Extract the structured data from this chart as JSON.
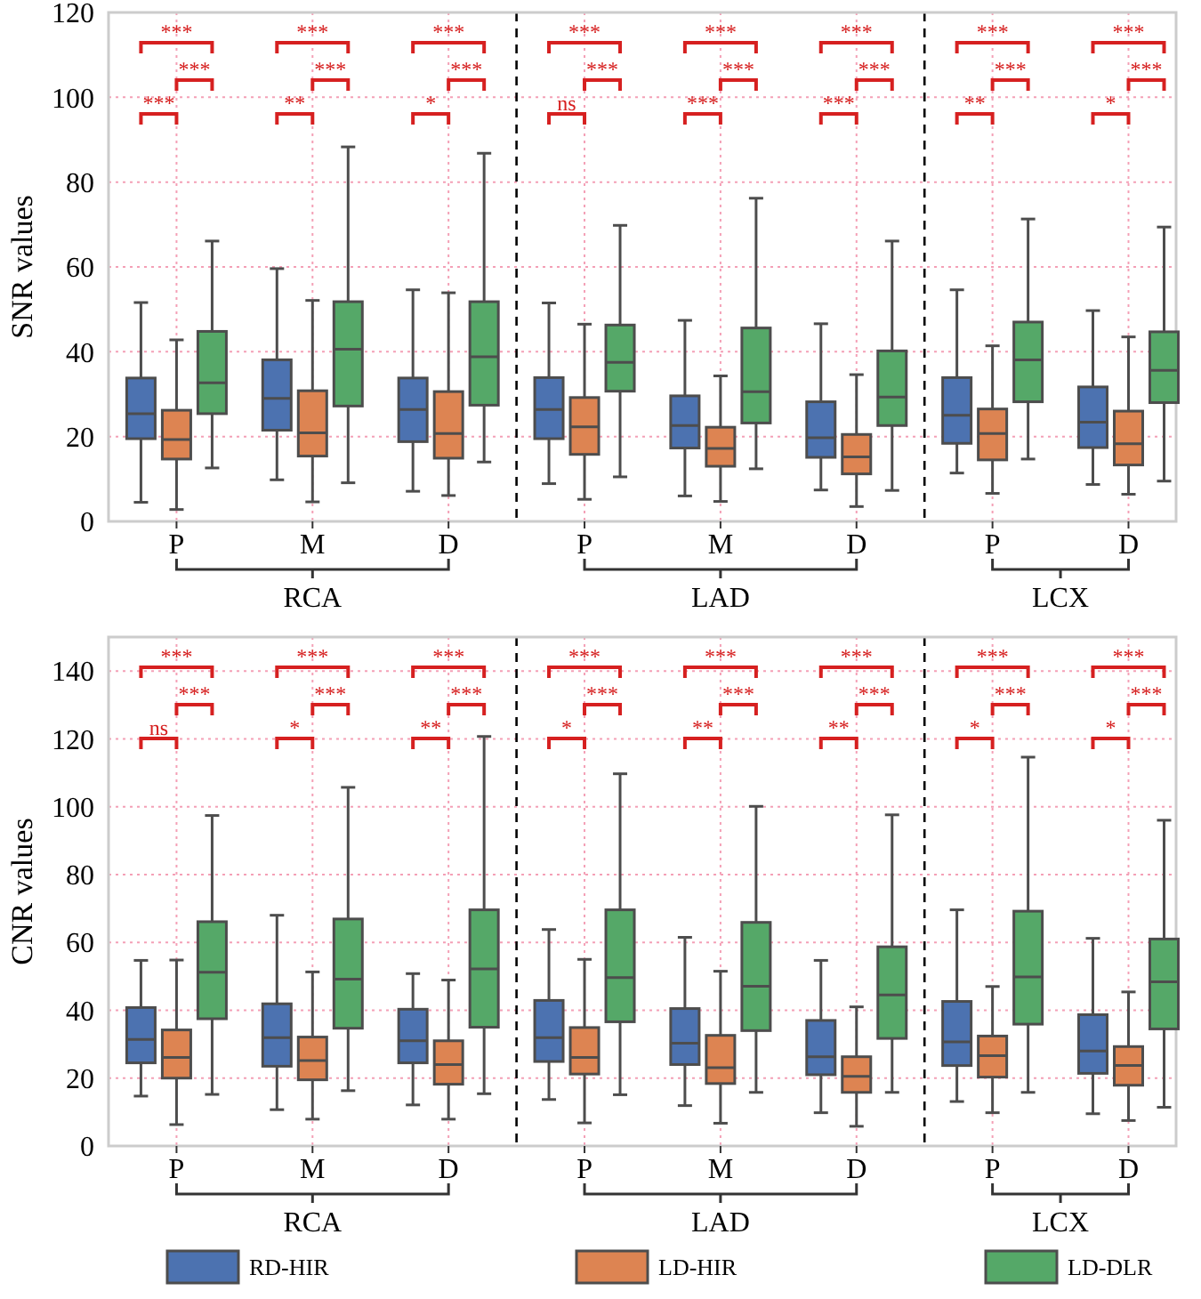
{
  "chart_data": [
    {
      "type": "box",
      "ylabel": "SNR values",
      "categories": [
        "P",
        "M",
        "D",
        "P",
        "M",
        "D",
        "P",
        "D"
      ],
      "ylim": [
        0,
        120
      ],
      "yticks": [
        0,
        20,
        40,
        60,
        80,
        100,
        120
      ],
      "grid": true,
      "series": [
        {
          "color": "#4c72b0",
          "boxes": [
            {
              "low": 4.5,
              "q1": 19.5,
              "median": 25.4,
              "q3": 33.8,
              "high": 51.6
            },
            {
              "low": 9.8,
              "q1": 21.5,
              "median": 29,
              "q3": 38.1,
              "high": 59.6
            },
            {
              "low": 7.1,
              "q1": 18.8,
              "median": 26.4,
              "q3": 33.8,
              "high": 54.6
            },
            {
              "low": 8.9,
              "q1": 19.5,
              "median": 26.4,
              "q3": 33.9,
              "high": 51.5
            },
            {
              "low": 6,
              "q1": 17.3,
              "median": 22.6,
              "q3": 29.6,
              "high": 47.4
            },
            {
              "low": 7.4,
              "q1": 15.1,
              "median": 19.7,
              "q3": 28.2,
              "high": 46.6
            },
            {
              "low": 11.4,
              "q1": 18.4,
              "median": 25,
              "q3": 33.9,
              "high": 54.6
            },
            {
              "low": 8.7,
              "q1": 17.4,
              "median": 23.4,
              "q3": 31.7,
              "high": 49.7
            }
          ]
        },
        {
          "color": "#dd8452",
          "boxes": [
            {
              "low": 2.8,
              "q1": 14.7,
              "median": 19.3,
              "q3": 26.2,
              "high": 42.8
            },
            {
              "low": 4.6,
              "q1": 15.4,
              "median": 20.9,
              "q3": 30.8,
              "high": 52.1
            },
            {
              "low": 6.1,
              "q1": 14.9,
              "median": 20.7,
              "q3": 30.6,
              "high": 53.9
            },
            {
              "low": 5.2,
              "q1": 15.8,
              "median": 22.3,
              "q3": 29.2,
              "high": 46.5
            },
            {
              "low": 4.7,
              "q1": 13,
              "median": 17.2,
              "q3": 22.2,
              "high": 34.3
            },
            {
              "low": 3.5,
              "q1": 11.2,
              "median": 15.2,
              "q3": 20.5,
              "high": 34.6
            },
            {
              "low": 6.6,
              "q1": 14.5,
              "median": 20.7,
              "q3": 26.5,
              "high": 41.4
            },
            {
              "low": 6.4,
              "q1": 13.3,
              "median": 18.3,
              "q3": 26,
              "high": 43.5
            }
          ]
        },
        {
          "color": "#55a868",
          "boxes": [
            {
              "low": 12.6,
              "q1": 25.4,
              "median": 32.7,
              "q3": 44.8,
              "high": 66.1
            },
            {
              "low": 9.1,
              "q1": 27.2,
              "median": 40.6,
              "q3": 51.8,
              "high": 88.3
            },
            {
              "low": 14,
              "q1": 27.4,
              "median": 38.8,
              "q3": 51.8,
              "high": 86.8
            },
            {
              "low": 10.5,
              "q1": 30.7,
              "median": 37.5,
              "q3": 46.3,
              "high": 69.8
            },
            {
              "low": 12.4,
              "q1": 23.2,
              "median": 30.6,
              "q3": 45.6,
              "high": 76.2
            },
            {
              "low": 7.3,
              "q1": 22.6,
              "median": 29.3,
              "q3": 40.2,
              "high": 66.1
            },
            {
              "low": 14.7,
              "q1": 28.2,
              "median": 38.1,
              "q3": 47,
              "high": 71.3
            },
            {
              "low": 9.5,
              "q1": 28,
              "median": 35.6,
              "q3": 44.7,
              "high": 69.4
            }
          ]
        }
      ],
      "annotations": [
        "***",
        "***",
        "***",
        "**",
        "***",
        "***",
        "*",
        "***",
        "***",
        "ns",
        "***",
        "***",
        "***",
        "***",
        "***",
        "***",
        "***",
        "***",
        "**",
        "***",
        "***",
        "*",
        "***",
        "***",
        "RCA",
        "LAD",
        "LCX"
      ]
    },
    {
      "type": "box",
      "ylabel": "CNR values",
      "categories": [
        "P",
        "M",
        "D",
        "P",
        "M",
        "D",
        "P",
        "D"
      ],
      "ylim": [
        0,
        150
      ],
      "yticks": [
        0,
        20,
        40,
        60,
        80,
        100,
        120,
        140
      ],
      "grid": true,
      "legend": "bottom",
      "series": [
        {
          "name": "RD-HIR",
          "color": "#4c72b0",
          "boxes": [
            {
              "low": 14.7,
              "q1": 24.5,
              "median": 31.4,
              "q3": 40.8,
              "high": 54.7
            },
            {
              "low": 10.7,
              "q1": 23.5,
              "median": 31.9,
              "q3": 41.9,
              "high": 68
            },
            {
              "low": 12.1,
              "q1": 24.5,
              "median": 31,
              "q3": 40.3,
              "high": 50.8
            },
            {
              "low": 13.7,
              "q1": 24.9,
              "median": 31.9,
              "q3": 42.9,
              "high": 63.8
            },
            {
              "low": 11.9,
              "q1": 24,
              "median": 30.3,
              "q3": 40.5,
              "high": 61.5
            },
            {
              "low": 9.8,
              "q1": 21,
              "median": 26.3,
              "q3": 37,
              "high": 54.7
            },
            {
              "low": 13.1,
              "q1": 23.7,
              "median": 30.7,
              "q3": 42.6,
              "high": 69.6
            },
            {
              "low": 9.5,
              "q1": 21.4,
              "median": 28,
              "q3": 38.7,
              "high": 61.2
            }
          ]
        },
        {
          "name": "LD-HIR",
          "color": "#dd8452",
          "boxes": [
            {
              "low": 6.3,
              "q1": 20,
              "median": 26.1,
              "q3": 34.2,
              "high": 54.8
            },
            {
              "low": 7.9,
              "q1": 19.5,
              "median": 25.2,
              "q3": 32.1,
              "high": 51.3
            },
            {
              "low": 7.9,
              "q1": 18.2,
              "median": 24,
              "q3": 31,
              "high": 48.9
            },
            {
              "low": 6.8,
              "q1": 21.2,
              "median": 26.1,
              "q3": 34.9,
              "high": 55
            },
            {
              "low": 6.7,
              "q1": 18.4,
              "median": 23.1,
              "q3": 32.6,
              "high": 51.5
            },
            {
              "low": 5.8,
              "q1": 15.8,
              "median": 20.5,
              "q3": 26.3,
              "high": 41
            },
            {
              "low": 9.8,
              "q1": 20.3,
              "median": 26.6,
              "q3": 32.4,
              "high": 47
            },
            {
              "low": 7.5,
              "q1": 17.9,
              "median": 23.7,
              "q3": 29.3,
              "high": 45.4
            }
          ]
        },
        {
          "name": "LD-DLR",
          "color": "#55a868",
          "boxes": [
            {
              "low": 15.2,
              "q1": 37.5,
              "median": 51.2,
              "q3": 66.1,
              "high": 97.4
            },
            {
              "low": 16.3,
              "q1": 34.7,
              "median": 49.2,
              "q3": 66.9,
              "high": 105.7
            },
            {
              "low": 15.4,
              "q1": 35,
              "median": 52.2,
              "q3": 69.6,
              "high": 120.7
            },
            {
              "low": 15.1,
              "q1": 36.6,
              "median": 49.6,
              "q3": 69.6,
              "high": 109.7
            },
            {
              "low": 15.8,
              "q1": 34,
              "median": 47.1,
              "q3": 65.9,
              "high": 100.1
            },
            {
              "low": 15.8,
              "q1": 31.7,
              "median": 44.5,
              "q3": 58.7,
              "high": 97.6
            },
            {
              "low": 15.8,
              "q1": 35.9,
              "median": 49.8,
              "q3": 69.2,
              "high": 114.6
            },
            {
              "low": 11.4,
              "q1": 34.5,
              "median": 48.4,
              "q3": 61,
              "high": 96
            }
          ]
        }
      ],
      "annotations": [
        "ns",
        "***",
        "***",
        "*",
        "***",
        "***",
        "**",
        "***",
        "***",
        "*",
        "***",
        "***",
        "**",
        "***",
        "***",
        "**",
        "***",
        "***",
        "*",
        "***",
        "***",
        "*",
        "***",
        "***",
        "RCA",
        "LAD",
        "LCX"
      ]
    }
  ]
}
